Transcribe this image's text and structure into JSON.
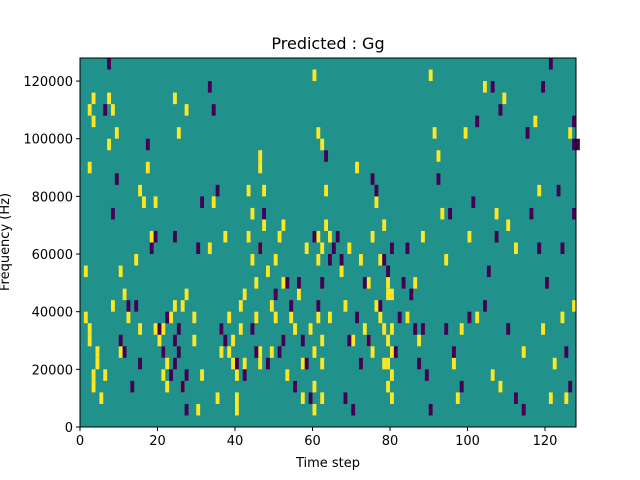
{
  "chart_data": {
    "type": "heatmap",
    "title": "Predicted : Gg",
    "xlabel": "Time step",
    "ylabel": "Frequency (Hz)",
    "xlim": [
      0,
      128
    ],
    "ylim": [
      0,
      128000
    ],
    "x_ticks": [
      0,
      20,
      40,
      60,
      80,
      100,
      120
    ],
    "x_tick_labels": [
      "0",
      "20",
      "40",
      "60",
      "80",
      "100",
      "120"
    ],
    "y_ticks": [
      0,
      20000,
      40000,
      60000,
      80000,
      100000,
      120000
    ],
    "y_tick_labels": [
      "0",
      "20000",
      "40000",
      "60000",
      "80000",
      "100000",
      "120000"
    ],
    "grid": false,
    "legend": "none",
    "colors": {
      "background": "#21918c",
      "low": "#440154",
      "high": "#fde725"
    },
    "background_level": "mid",
    "cell_height_hz": 4000,
    "cells_high": [
      [
        2,
        108000
      ],
      [
        3,
        112000
      ],
      [
        3,
        104000
      ],
      [
        2,
        88000
      ],
      [
        1,
        52000
      ],
      [
        2,
        32000
      ],
      [
        2,
        28000
      ],
      [
        4,
        24000
      ],
      [
        4,
        20000
      ],
      [
        3,
        12000
      ],
      [
        5,
        8000
      ],
      [
        7,
        112000
      ],
      [
        8,
        108000
      ],
      [
        7,
        96000
      ],
      [
        8,
        40000
      ],
      [
        6,
        16000
      ],
      [
        9,
        100000
      ],
      [
        10,
        52000
      ],
      [
        11,
        44000
      ],
      [
        10,
        24000
      ],
      [
        12,
        36000
      ],
      [
        15,
        80000
      ],
      [
        14,
        56000
      ],
      [
        15,
        32000
      ],
      [
        16,
        76000
      ],
      [
        17,
        88000
      ],
      [
        18,
        64000
      ],
      [
        19,
        76000
      ],
      [
        19,
        32000
      ],
      [
        20,
        28000
      ],
      [
        21,
        32000
      ],
      [
        21,
        24000
      ],
      [
        21,
        16000
      ],
      [
        22,
        20000
      ],
      [
        22,
        12000
      ],
      [
        23,
        36000
      ],
      [
        24,
        40000
      ],
      [
        26,
        40000
      ],
      [
        26,
        12000
      ],
      [
        27,
        44000
      ],
      [
        24,
        112000
      ],
      [
        25,
        100000
      ],
      [
        27,
        108000
      ],
      [
        29,
        36000
      ],
      [
        29,
        28000
      ],
      [
        30,
        4000
      ],
      [
        31,
        16000
      ],
      [
        33,
        60000
      ],
      [
        34,
        76000
      ],
      [
        35,
        8000
      ],
      [
        36,
        32000
      ],
      [
        36,
        24000
      ],
      [
        37,
        64000
      ],
      [
        38,
        36000
      ],
      [
        38,
        24000
      ],
      [
        39,
        20000
      ],
      [
        39,
        28000
      ],
      [
        40,
        16000
      ],
      [
        40,
        8000
      ],
      [
        40,
        4000
      ],
      [
        41,
        32000
      ],
      [
        41,
        40000
      ],
      [
        42,
        44000
      ],
      [
        42,
        20000
      ],
      [
        43,
        64000
      ],
      [
        43,
        80000
      ],
      [
        44,
        72000
      ],
      [
        44,
        56000
      ],
      [
        45,
        48000
      ],
      [
        45,
        36000
      ],
      [
        46,
        60000
      ],
      [
        46,
        20000
      ],
      [
        46,
        24000
      ],
      [
        46,
        88000
      ],
      [
        46,
        92000
      ],
      [
        47,
        80000
      ],
      [
        47,
        68000
      ],
      [
        48,
        52000
      ],
      [
        49,
        40000
      ],
      [
        49,
        24000
      ],
      [
        50,
        56000
      ],
      [
        50,
        36000
      ],
      [
        51,
        64000
      ],
      [
        52,
        68000
      ],
      [
        52,
        48000
      ],
      [
        52,
        28000
      ],
      [
        53,
        16000
      ],
      [
        54,
        36000
      ],
      [
        55,
        32000
      ],
      [
        56,
        44000
      ],
      [
        57,
        8000
      ],
      [
        57,
        20000
      ],
      [
        58,
        60000
      ],
      [
        59,
        32000
      ],
      [
        60,
        24000
      ],
      [
        60,
        12000
      ],
      [
        60,
        4000
      ],
      [
        61,
        64000
      ],
      [
        61,
        56000
      ],
      [
        61,
        36000
      ],
      [
        62,
        60000
      ],
      [
        62,
        28000
      ],
      [
        62,
        20000
      ],
      [
        62,
        8000
      ],
      [
        63,
        68000
      ],
      [
        63,
        80000
      ],
      [
        64,
        64000
      ],
      [
        64,
        36000
      ],
      [
        61,
        100000
      ],
      [
        62,
        96000
      ],
      [
        60,
        120000
      ],
      [
        67,
        52000
      ],
      [
        68,
        40000
      ],
      [
        69,
        60000
      ],
      [
        70,
        28000
      ],
      [
        71,
        88000
      ],
      [
        72,
        56000
      ],
      [
        73,
        32000
      ],
      [
        74,
        48000
      ],
      [
        74,
        28000
      ],
      [
        75,
        64000
      ],
      [
        75,
        24000
      ],
      [
        76,
        40000
      ],
      [
        76,
        76000
      ],
      [
        77,
        56000
      ],
      [
        77,
        36000
      ],
      [
        78,
        68000
      ],
      [
        78,
        32000
      ],
      [
        78,
        20000
      ],
      [
        79,
        48000
      ],
      [
        79,
        44000
      ],
      [
        79,
        28000
      ],
      [
        79,
        20000
      ],
      [
        79,
        12000
      ],
      [
        80,
        32000
      ],
      [
        80,
        24000
      ],
      [
        80,
        16000
      ],
      [
        80,
        8000
      ],
      [
        80,
        44000
      ],
      [
        84,
        36000
      ],
      [
        86,
        48000
      ],
      [
        87,
        28000
      ],
      [
        88,
        64000
      ],
      [
        90,
        120000
      ],
      [
        91,
        100000
      ],
      [
        92,
        92000
      ],
      [
        93,
        72000
      ],
      [
        94,
        56000
      ],
      [
        96,
        20000
      ],
      [
        97,
        8000
      ],
      [
        98,
        32000
      ],
      [
        99,
        100000
      ],
      [
        100,
        64000
      ],
      [
        102,
        36000
      ],
      [
        104,
        116000
      ],
      [
        106,
        16000
      ],
      [
        107,
        72000
      ],
      [
        108,
        12000
      ],
      [
        109,
        112000
      ],
      [
        110,
        68000
      ],
      [
        112,
        60000
      ],
      [
        114,
        24000
      ],
      [
        117,
        104000
      ],
      [
        118,
        80000
      ],
      [
        119,
        32000
      ],
      [
        121,
        8000
      ],
      [
        122,
        20000
      ],
      [
        124,
        36000
      ],
      [
        125,
        8000
      ],
      [
        126,
        100000
      ],
      [
        127,
        40000
      ],
      [
        1,
        36000
      ],
      [
        3,
        16000
      ]
    ],
    "cells_low": [
      [
        7,
        124000
      ],
      [
        6,
        108000
      ],
      [
        8,
        72000
      ],
      [
        9,
        84000
      ],
      [
        10,
        28000
      ],
      [
        11,
        24000
      ],
      [
        12,
        40000
      ],
      [
        13,
        12000
      ],
      [
        14,
        40000
      ],
      [
        15,
        20000
      ],
      [
        17,
        96000
      ],
      [
        18,
        60000
      ],
      [
        19,
        64000
      ],
      [
        20,
        32000
      ],
      [
        21,
        24000
      ],
      [
        22,
        36000
      ],
      [
        23,
        16000
      ],
      [
        24,
        64000
      ],
      [
        24,
        28000
      ],
      [
        24,
        20000
      ],
      [
        25,
        32000
      ],
      [
        25,
        24000
      ],
      [
        26,
        12000
      ],
      [
        27,
        16000
      ],
      [
        27,
        4000
      ],
      [
        30,
        60000
      ],
      [
        31,
        76000
      ],
      [
        33,
        116000
      ],
      [
        34,
        108000
      ],
      [
        35,
        80000
      ],
      [
        36,
        32000
      ],
      [
        37,
        28000
      ],
      [
        40,
        20000
      ],
      [
        42,
        16000
      ],
      [
        44,
        32000
      ],
      [
        45,
        24000
      ],
      [
        46,
        60000
      ],
      [
        47,
        72000
      ],
      [
        48,
        20000
      ],
      [
        50,
        44000
      ],
      [
        51,
        24000
      ],
      [
        52,
        28000
      ],
      [
        53,
        48000
      ],
      [
        54,
        40000
      ],
      [
        55,
        12000
      ],
      [
        56,
        48000
      ],
      [
        57,
        28000
      ],
      [
        58,
        20000
      ],
      [
        59,
        8000
      ],
      [
        60,
        64000
      ],
      [
        61,
        40000
      ],
      [
        62,
        48000
      ],
      [
        63,
        92000
      ],
      [
        64,
        56000
      ],
      [
        65,
        60000
      ],
      [
        66,
        64000
      ],
      [
        67,
        56000
      ],
      [
        68,
        8000
      ],
      [
        69,
        28000
      ],
      [
        70,
        4000
      ],
      [
        71,
        36000
      ],
      [
        72,
        20000
      ],
      [
        73,
        48000
      ],
      [
        74,
        28000
      ],
      [
        75,
        84000
      ],
      [
        76,
        80000
      ],
      [
        77,
        40000
      ],
      [
        78,
        56000
      ],
      [
        79,
        52000
      ],
      [
        80,
        60000
      ],
      [
        81,
        24000
      ],
      [
        82,
        36000
      ],
      [
        83,
        48000
      ],
      [
        84,
        60000
      ],
      [
        85,
        44000
      ],
      [
        86,
        32000
      ],
      [
        87,
        20000
      ],
      [
        88,
        32000
      ],
      [
        89,
        16000
      ],
      [
        90,
        4000
      ],
      [
        92,
        84000
      ],
      [
        94,
        32000
      ],
      [
        95,
        72000
      ],
      [
        96,
        24000
      ],
      [
        98,
        12000
      ],
      [
        100,
        36000
      ],
      [
        101,
        76000
      ],
      [
        102,
        104000
      ],
      [
        104,
        40000
      ],
      [
        105,
        52000
      ],
      [
        106,
        116000
      ],
      [
        107,
        64000
      ],
      [
        108,
        108000
      ],
      [
        110,
        32000
      ],
      [
        112,
        8000
      ],
      [
        114,
        4000
      ],
      [
        115,
        100000
      ],
      [
        116,
        72000
      ],
      [
        118,
        60000
      ],
      [
        119,
        116000
      ],
      [
        120,
        48000
      ],
      [
        121,
        124000
      ],
      [
        123,
        80000
      ],
      [
        124,
        60000
      ],
      [
        125,
        24000
      ],
      [
        126,
        12000
      ],
      [
        127,
        96000
      ],
      [
        127,
        72000
      ],
      [
        127,
        104000
      ],
      [
        128,
        96000
      ]
    ]
  }
}
